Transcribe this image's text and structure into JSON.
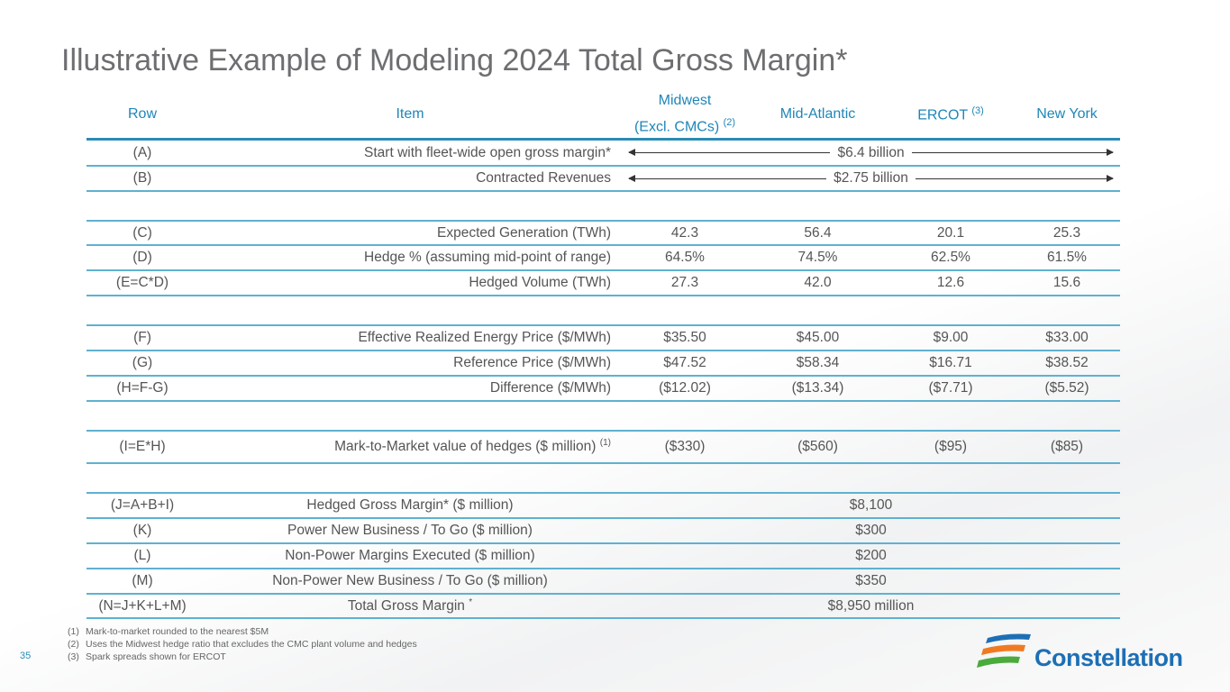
{
  "title": "Illustrative Example of Modeling 2024 Total Gross Margin*",
  "headers": {
    "row": "Row",
    "item": "Item",
    "midwest": "Midwest",
    "midwest2": "(Excl. CMCs)",
    "midwest_note": "(2)",
    "midatlantic": "Mid-Atlantic",
    "ercot": "ERCOT",
    "ercot_note": "(3)",
    "newyork": "New York"
  },
  "rows": [
    {
      "row": "(A)",
      "item": "Start with fleet-wide open gross margin*",
      "span": "$6.4 billion"
    },
    {
      "row": "(B)",
      "item": "Contracted Revenues",
      "span": "$2.75 billion"
    },
    {
      "row": "(C)",
      "item": "Expected Generation (TWh)",
      "values": [
        "42.3",
        "56.4",
        "20.1",
        "25.3"
      ]
    },
    {
      "row": "(D)",
      "item": "Hedge % (assuming mid-point of range)",
      "values": [
        "64.5%",
        "74.5%",
        "62.5%",
        "61.5%"
      ]
    },
    {
      "row": "(E=C*D)",
      "item": "Hedged Volume (TWh)",
      "values": [
        "27.3",
        "42.0",
        "12.6",
        "15.6"
      ]
    },
    {
      "row": "(F)",
      "item": "Effective Realized Energy Price ($/MWh)",
      "values": [
        "$35.50",
        "$45.00",
        "$9.00",
        "$33.00"
      ]
    },
    {
      "row": "(G)",
      "item": "Reference Price ($/MWh)",
      "values": [
        "$47.52",
        "$58.34",
        "$16.71",
        "$38.52"
      ]
    },
    {
      "row": "(H=F-G)",
      "item": "Difference ($/MWh)",
      "values": [
        "($12.02)",
        "($13.34)",
        "($7.71)",
        "($5.52)"
      ]
    },
    {
      "row": "(I=E*H)",
      "item": "Mark-to-Market value of hedges ($ million)",
      "note": "(1)",
      "values": [
        "($330)",
        "($560)",
        "($95)",
        "($85)"
      ]
    },
    {
      "row": "(J=A+B+I)",
      "item": "Hedged Gross Margin* ($ million)",
      "total": "$8,100"
    },
    {
      "row": "(K)",
      "item": "Power New Business / To Go ($ million)",
      "total": "$300"
    },
    {
      "row": "(L)",
      "item": "Non-Power Margins Executed ($ million)",
      "total": "$200"
    },
    {
      "row": "(M)",
      "item": "Non-Power New Business / To Go ($ million)",
      "total": "$350"
    },
    {
      "row": "(N=J+K+L+M)",
      "item": "Total Gross Margin",
      "note": "*",
      "total": "$8,950 million"
    }
  ],
  "notes": [
    {
      "n": "(1)",
      "t": "Mark-to-market rounded to the nearest $5M"
    },
    {
      "n": "(2)",
      "t": "Uses the Midwest hedge ratio that excludes the CMC plant volume and hedges"
    },
    {
      "n": "(3)",
      "t": "Spark spreads shown for ERCOT"
    }
  ],
  "page_number": "35",
  "logo": "Constellation"
}
